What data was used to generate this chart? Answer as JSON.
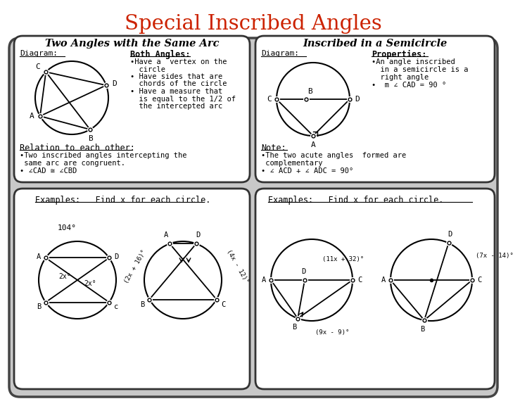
{
  "title": "Special Inscribed Angles",
  "title_color": "#cc2200",
  "bg_color": "#ffffff",
  "outer_bg": "#e8e8e8",
  "panel_bg": "#ffffff",
  "top_left": {
    "heading": "Two Angles with the Same Arc",
    "diagram_label": "Diagram:",
    "col2_label": "Both Angles:",
    "bullets": [
      "•Have a  vertex on the",
      "  circle",
      "• Have sides that are",
      "  chords of the circle",
      "• Have a measure that",
      "  is equal to the 1/2 of",
      "  the intercepted arc"
    ],
    "relation_heading": "Relation to each other:",
    "relation_lines": [
      "•Two inscribed angles intercepting the",
      " same arc are congruent.",
      "• ∠CAD ≅ ∠CBD"
    ]
  },
  "top_right": {
    "heading": "Inscribed in a Semicircle",
    "diagram_label": "Diagram:",
    "col2_label": "Properties:",
    "prop_lines": [
      "•An angle inscribed",
      "  in a semicircle is a",
      "  right angle",
      "•  m ∠ CAD = 90 °"
    ],
    "note_heading": "Note:",
    "note_lines": [
      "•The two acute angles  formed are",
      " complementary",
      "• ∠ ACD + ∠ ADC = 90°"
    ]
  },
  "bottom_left": {
    "heading": "Examples:   Find x for each circle.",
    "arc1_label": "104°",
    "lbl_2x1": "2x°",
    "lbl_2x2": "2x°",
    "lbl_2x16": "(2x + 16)°",
    "lbl_4x12": "(4x - 12)°"
  },
  "bottom_right": {
    "heading": "Examples:   Find x for each circle.",
    "lbl_11x32": "(11x + 32)°",
    "lbl_9x9": "(9x - 9)°",
    "lbl_7x14": "(7x - 14)°"
  }
}
